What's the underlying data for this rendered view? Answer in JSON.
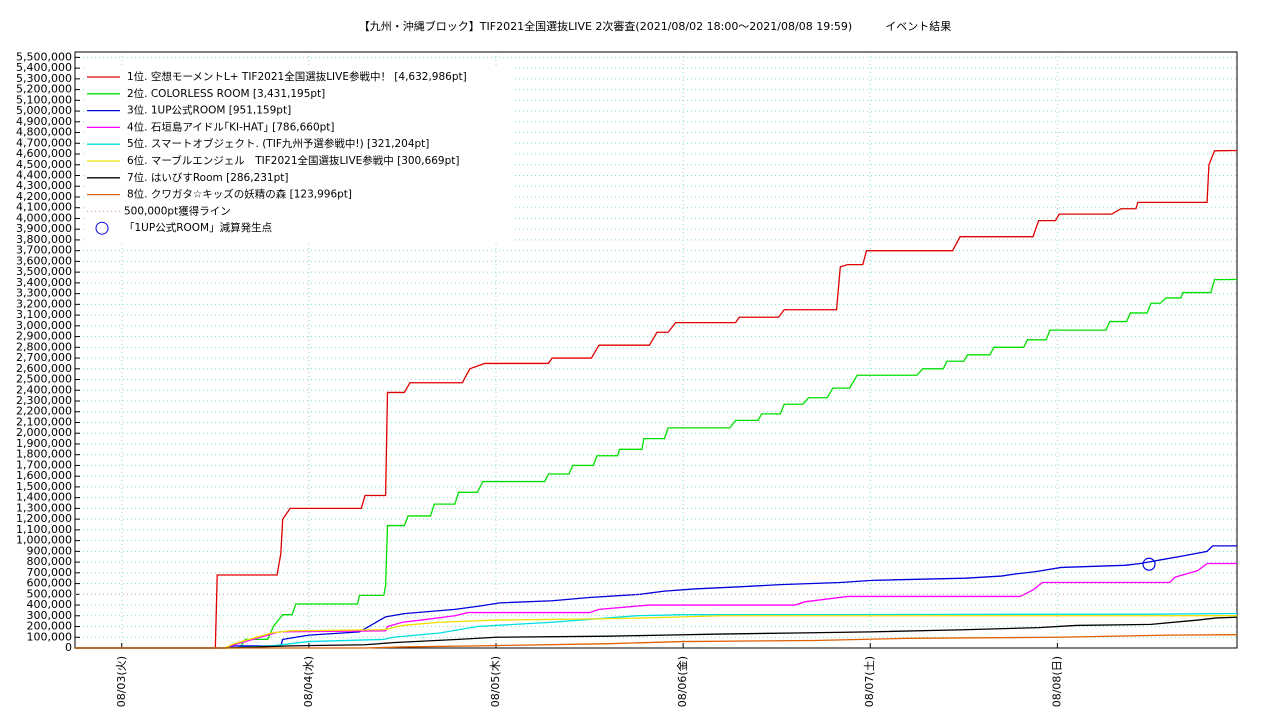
{
  "chart_data": {
    "type": "line",
    "title": "【九州・沖縄ブロック】TIF2021全国選抜LIVE 2次審査(2021/08/02 18:00～2021/08/08 19:59)　　　イベント結果",
    "xlim": [
      -0.25,
      5.96
    ],
    "xticks": [
      {
        "value": 0,
        "label": "08/03(火)"
      },
      {
        "value": 1,
        "label": "08/04(水)"
      },
      {
        "value": 2,
        "label": "08/05(木)"
      },
      {
        "value": 3,
        "label": "08/06(金)"
      },
      {
        "value": 4,
        "label": "08/07(土)"
      },
      {
        "value": 5,
        "label": "08/08(日)"
      }
    ],
    "ylim": [
      0,
      5550000
    ],
    "yticks": [
      0,
      {
        "value": 100000,
        "label": "100,000"
      },
      {
        "value": 200000,
        "label": "200,000"
      },
      {
        "value": 300000,
        "label": "300,000"
      },
      {
        "value": 400000,
        "label": "400,000"
      },
      {
        "value": 500000,
        "label": "500,000"
      },
      {
        "value": 600000,
        "label": "600,000"
      },
      {
        "value": 700000,
        "label": "700,000"
      },
      {
        "value": 800000,
        "label": "800,000"
      },
      {
        "value": 900000,
        "label": "900,000"
      },
      {
        "value": 1000000,
        "label": "1,000,000"
      },
      {
        "value": 1100000,
        "label": "1,100,000"
      },
      {
        "value": 1200000,
        "label": "1,200,000"
      },
      {
        "value": 1300000,
        "label": "1,300,000"
      },
      {
        "value": 1400000,
        "label": "1,400,000"
      },
      {
        "value": 1500000,
        "label": "1,500,000"
      },
      {
        "value": 1600000,
        "label": "1,600,000"
      },
      {
        "value": 1700000,
        "label": "1,700,000"
      },
      {
        "value": 1800000,
        "label": "1,800,000"
      },
      {
        "value": 1900000,
        "label": "1,900,000"
      },
      {
        "value": 2000000,
        "label": "2,000,000"
      },
      {
        "value": 2100000,
        "label": "2,100,000"
      },
      {
        "value": 2200000,
        "label": "2,200,000"
      },
      {
        "value": 2300000,
        "label": "2,300,000"
      },
      {
        "value": 2400000,
        "label": "2,400,000"
      },
      {
        "value": 2500000,
        "label": "2,500,000"
      },
      {
        "value": 2600000,
        "label": "2,600,000"
      },
      {
        "value": 2700000,
        "label": "2,700,000"
      },
      {
        "value": 2800000,
        "label": "2,800,000"
      },
      {
        "value": 2900000,
        "label": "2,900,000"
      },
      {
        "value": 3000000,
        "label": "3,000,000"
      },
      {
        "value": 3100000,
        "label": "3,100,000"
      },
      {
        "value": 3200000,
        "label": "3,200,000"
      },
      {
        "value": 3300000,
        "label": "3,300,000"
      },
      {
        "value": 3400000,
        "label": "3,400,000"
      },
      {
        "value": 3500000,
        "label": "3,500,000"
      },
      {
        "value": 3600000,
        "label": "3,600,000"
      },
      {
        "value": 3700000,
        "label": "3,700,000"
      },
      {
        "value": 3800000,
        "label": "3,800,000"
      },
      {
        "value": 3900000,
        "label": "3,900,000"
      },
      {
        "value": 4000000,
        "label": "4,000,000"
      },
      {
        "value": 4100000,
        "label": "4,100,000"
      },
      {
        "value": 4200000,
        "label": "4,200,000"
      },
      {
        "value": 4300000,
        "label": "4,300,000"
      },
      {
        "value": 4400000,
        "label": "4,400,000"
      },
      {
        "value": 4500000,
        "label": "4,500,000"
      },
      {
        "value": 4600000,
        "label": "4,600,000"
      },
      {
        "value": 4700000,
        "label": "4,700,000"
      },
      {
        "value": 4800000,
        "label": "4,800,000"
      },
      {
        "value": 4900000,
        "label": "4,900,000"
      },
      {
        "value": 5000000,
        "label": "5,000,000"
      },
      {
        "value": 5100000,
        "label": "5,100,000"
      },
      {
        "value": 5200000,
        "label": "5,200,000"
      },
      {
        "value": 5300000,
        "label": "5,300,000"
      },
      {
        "value": 5400000,
        "label": "5,400,000"
      },
      {
        "value": 5500000,
        "label": "5,500,000"
      }
    ],
    "grid": true,
    "legend": "upper left",
    "series": [
      {
        "name": "1位. 空想モーメントL+ TIF2021全国選抜LIVE参戦中！ [4,632,986pt]",
        "color": "#e00000",
        "x": [
          -0.25,
          0.5,
          0.51,
          0.83,
          0.85,
          0.86,
          0.9,
          1.28,
          1.3,
          1.41,
          1.42,
          1.51,
          1.54,
          1.82,
          1.86,
          1.94,
          2.28,
          2.3,
          2.51,
          2.55,
          2.82,
          2.86,
          2.92,
          2.96,
          3.28,
          3.3,
          3.51,
          3.54,
          3.82,
          3.84,
          3.88,
          3.96,
          3.98,
          4.44,
          4.48,
          4.87,
          4.9,
          4.99,
          5.01,
          5.29,
          5.34,
          5.42,
          5.43,
          5.8,
          5.81,
          5.84,
          5.96
        ],
        "values": [
          0,
          0,
          680000,
          680000,
          880000,
          1200000,
          1300000,
          1300000,
          1420000,
          1420000,
          2380000,
          2380000,
          2470000,
          2470000,
          2600000,
          2650000,
          2650000,
          2700000,
          2700000,
          2820000,
          2820000,
          2940000,
          2940000,
          3030000,
          3030000,
          3080000,
          3080000,
          3150000,
          3150000,
          3550000,
          3570000,
          3570000,
          3700000,
          3700000,
          3830000,
          3830000,
          3980000,
          3980000,
          4040000,
          4040000,
          4090000,
          4090000,
          4150000,
          4150000,
          4500000,
          4630000,
          4632986
        ]
      },
      {
        "name": "2位. COLORLESS ROOM [3,431,195pt]",
        "color": "#00e000",
        "x": [
          -0.25,
          0.63,
          0.66,
          0.78,
          0.81,
          0.86,
          0.91,
          0.93,
          1.26,
          1.27,
          1.4,
          1.41,
          1.42,
          1.51,
          1.53,
          1.65,
          1.67,
          1.78,
          1.8,
          1.9,
          1.93,
          2.26,
          2.28,
          2.39,
          2.41,
          2.52,
          2.54,
          2.65,
          2.66,
          2.78,
          2.79,
          2.9,
          2.92,
          3.25,
          3.28,
          3.4,
          3.42,
          3.52,
          3.54,
          3.64,
          3.67,
          3.77,
          3.8,
          3.89,
          3.93,
          4.25,
          4.28,
          4.39,
          4.41,
          4.5,
          4.52,
          4.64,
          4.66,
          4.82,
          4.84,
          4.94,
          4.96,
          5.26,
          5.28,
          5.37,
          5.39,
          5.48,
          5.5,
          5.55,
          5.58,
          5.66,
          5.67,
          5.82,
          5.84,
          5.96
        ],
        "values": [
          0,
          0,
          80000,
          80000,
          200000,
          310000,
          310000,
          410000,
          410000,
          490000,
          490000,
          580000,
          1140000,
          1140000,
          1230000,
          1230000,
          1340000,
          1340000,
          1450000,
          1450000,
          1550000,
          1550000,
          1620000,
          1620000,
          1700000,
          1700000,
          1790000,
          1790000,
          1850000,
          1850000,
          1950000,
          1950000,
          2050000,
          2050000,
          2120000,
          2120000,
          2180000,
          2180000,
          2270000,
          2270000,
          2330000,
          2330000,
          2420000,
          2420000,
          2540000,
          2540000,
          2600000,
          2600000,
          2670000,
          2670000,
          2730000,
          2730000,
          2800000,
          2800000,
          2870000,
          2870000,
          2960000,
          2960000,
          3040000,
          3040000,
          3120000,
          3120000,
          3210000,
          3210000,
          3260000,
          3260000,
          3310000,
          3310000,
          3430000,
          3431195
        ]
      },
      {
        "name": "3位. 1UP公式ROOM [951,159pt]",
        "color": "#0000e0",
        "x": [
          -0.25,
          0.55,
          0.6,
          0.85,
          0.86,
          1.0,
          1.27,
          1.41,
          1.51,
          1.78,
          1.91,
          2.02,
          2.3,
          2.5,
          2.77,
          2.9,
          3.06,
          3.3,
          3.52,
          3.84,
          4.01,
          4.51,
          4.7,
          4.78,
          4.88,
          5.02,
          5.36,
          5.44,
          5.55,
          5.68,
          5.8,
          5.83,
          5.96
        ],
        "values": [
          0,
          0,
          20000,
          20000,
          80000,
          120000,
          150000,
          290000,
          320000,
          360000,
          390000,
          420000,
          440000,
          470000,
          500000,
          530000,
          550000,
          570000,
          590000,
          610000,
          630000,
          650000,
          670000,
          690000,
          710000,
          750000,
          770000,
          786000,
          820000,
          860000,
          900000,
          951159,
          951159
        ]
      },
      {
        "name": "4位. 石垣島アイドル｢KI-HAT｣ [786,660pt]",
        "color": "#ff00ff",
        "x": [
          -0.25,
          0.55,
          0.6,
          0.84,
          1.41,
          1.42,
          1.5,
          1.6,
          1.78,
          1.85,
          2.5,
          2.55,
          2.82,
          3.6,
          3.65,
          3.88,
          4.8,
          4.87,
          4.92,
          5.6,
          5.63,
          5.75,
          5.8,
          5.96
        ],
        "values": [
          0,
          0,
          30000,
          150000,
          160000,
          200000,
          240000,
          260000,
          300000,
          330000,
          330000,
          360000,
          400000,
          400000,
          430000,
          480000,
          480000,
          540000,
          610000,
          610000,
          660000,
          720000,
          786660,
          786660
        ]
      },
      {
        "name": "5位. スマートオブジェクト. (TIF九州予選参戦中!) [321,204pt]",
        "color": "#00e0e0",
        "x": [
          -0.25,
          0.55,
          0.8,
          1.0,
          1.4,
          1.45,
          1.7,
          1.9,
          2.3,
          2.6,
          2.75,
          3.0,
          5.5,
          5.96
        ],
        "values": [
          0,
          0,
          20000,
          60000,
          80000,
          100000,
          140000,
          200000,
          240000,
          280000,
          300000,
          310000,
          315000,
          321204
        ]
      },
      {
        "name": "6位. マーブルエンジェル　TIF2021全国選抜LIVE参戦中 [300,669pt]",
        "color": "#f0e000",
        "x": [
          -0.25,
          0.55,
          0.6,
          0.8,
          0.9,
          1.4,
          1.5,
          1.7,
          2.0,
          2.5,
          2.8,
          3.0,
          3.2,
          5.96
        ],
        "values": [
          0,
          0,
          40000,
          140000,
          160000,
          170000,
          210000,
          240000,
          260000,
          270000,
          280000,
          290000,
          300000,
          300669
        ]
      },
      {
        "name": "7位. はいびすRoom [286,231pt]",
        "color": "#000000",
        "x": [
          -0.25,
          0.55,
          0.9,
          1.3,
          1.45,
          1.8,
          2.0,
          2.6,
          2.9,
          3.2,
          3.6,
          4.0,
          4.5,
          4.9,
          5.1,
          5.5,
          5.75,
          5.85,
          5.96
        ],
        "values": [
          0,
          0,
          20000,
          30000,
          50000,
          80000,
          100000,
          110000,
          120000,
          130000,
          140000,
          150000,
          170000,
          190000,
          210000,
          220000,
          260000,
          280000,
          286231
        ]
      },
      {
        "name": "8位. クワガタ☆キッズの妖精の森 [123,996pt]",
        "color": "#e06000",
        "x": [
          -0.25,
          1.3,
          1.5,
          1.9,
          2.6,
          3.0,
          3.7,
          4.2,
          5.0,
          5.6,
          5.96
        ],
        "values": [
          0,
          0,
          10000,
          20000,
          40000,
          60000,
          70000,
          90000,
          100000,
          120000,
          123996
        ]
      },
      {
        "name": "500,000pt獲得ライン",
        "color": "#e0a0a0",
        "style": "dotted",
        "x": [
          -0.25,
          5.96
        ],
        "values": [
          500000,
          500000
        ]
      },
      {
        "name": "「1UP公式ROOM」減算発生点",
        "color": "#0000e0",
        "style": "circle",
        "x": [
          5.49
        ],
        "values": [
          780000
        ]
      }
    ]
  }
}
